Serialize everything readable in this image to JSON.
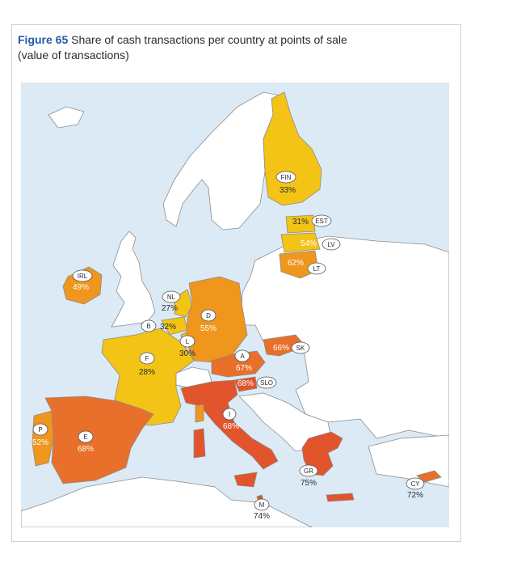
{
  "title": {
    "figure_label": "Figure 65",
    "text": "Share of cash transactions per country at points of sale",
    "subtitle": "(value of transactions)"
  },
  "colors": {
    "sea": "#dceaf5",
    "land_other": "#ffffff",
    "border": "#8c8c8c",
    "low": "#f3c316",
    "mid": "#ef961d",
    "high": "#e8702a",
    "highest": "#e2542b",
    "label_text": "#2b2b2b",
    "value_on_dark": "#ffffff"
  },
  "legend_scale": "share of cash (value)",
  "countries": [
    {
      "code": "FIN",
      "value": "33%",
      "share": 33
    },
    {
      "code": "EST",
      "value": "31%",
      "share": 31
    },
    {
      "code": "LV",
      "value": "54%",
      "share": 54
    },
    {
      "code": "LT",
      "value": "62%",
      "share": 62
    },
    {
      "code": "IRL",
      "value": "49%",
      "share": 49
    },
    {
      "code": "NL",
      "value": "27%",
      "share": 27
    },
    {
      "code": "B",
      "value": "32%",
      "share": 32
    },
    {
      "code": "L",
      "value": "30%",
      "share": 30
    },
    {
      "code": "D",
      "value": "55%",
      "share": 55
    },
    {
      "code": "F",
      "value": "28%",
      "share": 28
    },
    {
      "code": "A",
      "value": "67%",
      "share": 67
    },
    {
      "code": "SK",
      "value": "66%",
      "share": 66
    },
    {
      "code": "SLO",
      "value": "68%",
      "share": 68
    },
    {
      "code": "I",
      "value": "68%",
      "share": 68
    },
    {
      "code": "P",
      "value": "52%",
      "share": 52
    },
    {
      "code": "E",
      "value": "68%",
      "share": 68
    },
    {
      "code": "GR",
      "value": "75%",
      "share": 75
    },
    {
      "code": "CY",
      "value": "72%",
      "share": 72
    },
    {
      "code": "M",
      "value": "74%",
      "share": 74
    }
  ]
}
